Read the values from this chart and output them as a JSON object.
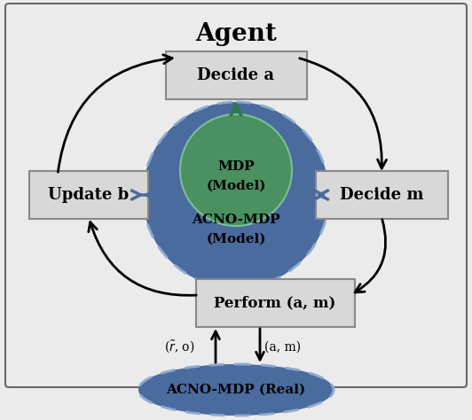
{
  "title": "Agent",
  "title_fontsize": 20,
  "bg_color": "#ebebeb",
  "box_fill": "#d8d8d8",
  "box_edge": "#888888",
  "circle_acno_color": "#4a6b9e",
  "circle_mdp_color": "#4a9060",
  "ellipse_real_color": "#4a6b9e",
  "arrow_color": "#000000",
  "green_arrow_color": "#2d7a50",
  "blue_arrow_color": "#4a6b9e",
  "acno_label_line1": "ACNO-MDP",
  "acno_label_line2": "(Model)",
  "mdp_label_line1": "MDP",
  "mdp_label_line2": "(Model)",
  "ellipse_real_label": "ACNO-MDP (Real)",
  "label_r_tilde_o": "($\\tilde{r}$, o)",
  "label_a_m": "(a, m)"
}
